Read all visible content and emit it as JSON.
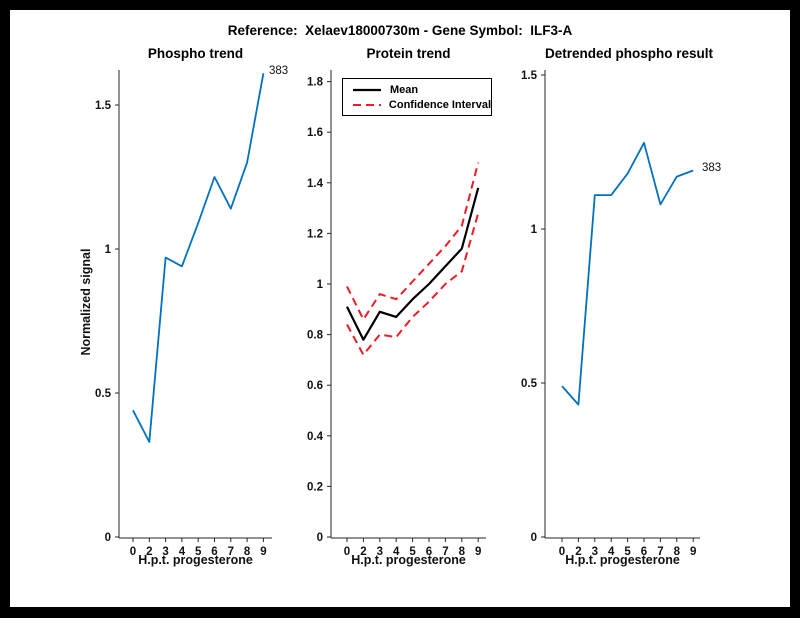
{
  "figure": {
    "title": "Reference:  Xelaev18000730m - Gene Symbol:  ILF3-A",
    "background": "#ffffff",
    "frame_color": "#000000"
  },
  "colors": {
    "blue": "#0072BD",
    "red": "#ED1C24",
    "black": "#000000",
    "axis": "#262626",
    "text": "#111111"
  },
  "chart_data": [
    {
      "type": "line",
      "title": "Phospho trend",
      "xlabel": "H.p.t. progesterone",
      "ylabel": "Normalized signal",
      "categories": [
        "0",
        "2",
        "3",
        "4",
        "5",
        "6",
        "7",
        "8",
        "9"
      ],
      "x_hours": [
        0,
        2,
        3,
        4,
        5,
        6,
        7,
        8,
        9
      ],
      "yticks": [
        0,
        0.5,
        1,
        1.5
      ],
      "ylim": [
        0,
        1.62
      ],
      "grid": false,
      "end_label": "383",
      "series": [
        {
          "name": "383",
          "color": "#0072BD",
          "style": "solid",
          "linewidth": 1.8,
          "values": [
            0.44,
            0.33,
            0.97,
            0.94,
            1.09,
            1.25,
            1.14,
            1.3,
            1.61
          ]
        }
      ]
    },
    {
      "type": "line",
      "title": "Protein trend",
      "xlabel": "H.p.t. progesterone",
      "ylabel": "",
      "categories": [
        "0",
        "2",
        "3",
        "4",
        "5",
        "6",
        "7",
        "8",
        "9"
      ],
      "x_hours": [
        0,
        2,
        3,
        4,
        5,
        6,
        7,
        8,
        9
      ],
      "yticks": [
        0,
        0.2,
        0.4,
        0.6,
        0.8,
        1,
        1.2,
        1.4,
        1.6,
        1.8
      ],
      "ylim": [
        0,
        1.85
      ],
      "grid": false,
      "legend": {
        "position": "northwest",
        "entries": [
          {
            "label": "Mean",
            "color": "#000000",
            "style": "solid"
          },
          {
            "label": "Confidence Interval",
            "color": "#ED1C24",
            "style": "dashed"
          }
        ]
      },
      "series": [
        {
          "name": "Mean",
          "color": "#000000",
          "style": "solid",
          "linewidth": 2.2,
          "values": [
            0.91,
            0.78,
            0.89,
            0.87,
            0.94,
            1.0,
            1.07,
            1.14,
            1.38
          ]
        },
        {
          "name": "Confidence Interval upper",
          "color": "#ED1C24",
          "style": "dashed",
          "linewidth": 2,
          "values": [
            0.99,
            0.86,
            0.96,
            0.94,
            1.01,
            1.08,
            1.15,
            1.23,
            1.48
          ]
        },
        {
          "name": "Confidence Interval lower",
          "color": "#ED1C24",
          "style": "dashed",
          "linewidth": 2,
          "values": [
            0.84,
            0.72,
            0.8,
            0.79,
            0.87,
            0.93,
            1.0,
            1.05,
            1.28
          ]
        }
      ]
    },
    {
      "type": "line",
      "title": "Detrended phospho result",
      "xlabel": "H.p.t. progesterone",
      "ylabel": "",
      "categories": [
        "0",
        "2",
        "3",
        "4",
        "5",
        "6",
        "7",
        "8",
        "9"
      ],
      "x_hours": [
        0,
        2,
        3,
        4,
        5,
        6,
        7,
        8,
        9
      ],
      "yticks": [
        0,
        0.5,
        1,
        1.5
      ],
      "ylim": [
        0,
        1.52
      ],
      "grid": false,
      "end_label": "383",
      "series": [
        {
          "name": "383",
          "color": "#0072BD",
          "style": "solid",
          "linewidth": 1.8,
          "values": [
            0.49,
            0.43,
            1.11,
            1.11,
            1.18,
            1.28,
            1.08,
            1.17,
            1.19
          ]
        }
      ]
    }
  ]
}
